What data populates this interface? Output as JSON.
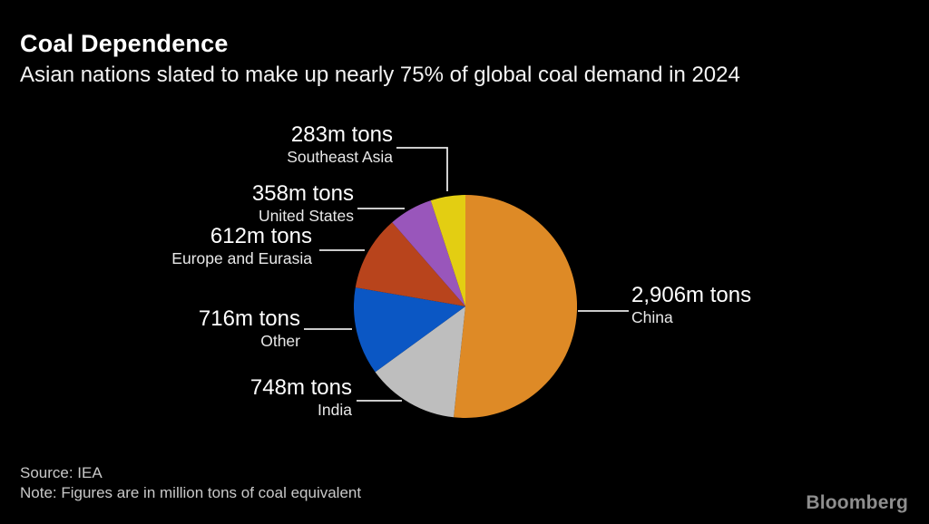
{
  "header": {
    "title": "Coal Dependence",
    "subtitle": "Asian nations slated to make up nearly 75% of global coal demand in 2024"
  },
  "chart_data": {
    "type": "pie",
    "title": "Coal Dependence",
    "subtitle": "Asian nations slated to make up nearly 75% of global coal demand in 2024",
    "unit": "million tons of coal equivalent",
    "start_angle_deg": 0,
    "direction": "clockwise",
    "background_color": "#000000",
    "slices": [
      {
        "label": "China",
        "value": 2906,
        "value_text": "2,906m tons",
        "color": "#DE8A26"
      },
      {
        "label": "India",
        "value": 748,
        "value_text": "748m tons",
        "color": "#BEBEBE"
      },
      {
        "label": "Other",
        "value": 716,
        "value_text": "716m tons",
        "color": "#0B57C4"
      },
      {
        "label": "Europe and Eurasia",
        "value": 612,
        "value_text": "612m tons",
        "color": "#B8441C"
      },
      {
        "label": "United States",
        "value": 358,
        "value_text": "358m tons",
        "color": "#9956BB"
      },
      {
        "label": "Southeast Asia",
        "value": 283,
        "value_text": "283m tons",
        "color": "#E3CE12"
      }
    ]
  },
  "footer": {
    "source": "Source: IEA",
    "note": "Note: Figures are in million tons of coal equivalent",
    "brand": "Bloomberg"
  }
}
